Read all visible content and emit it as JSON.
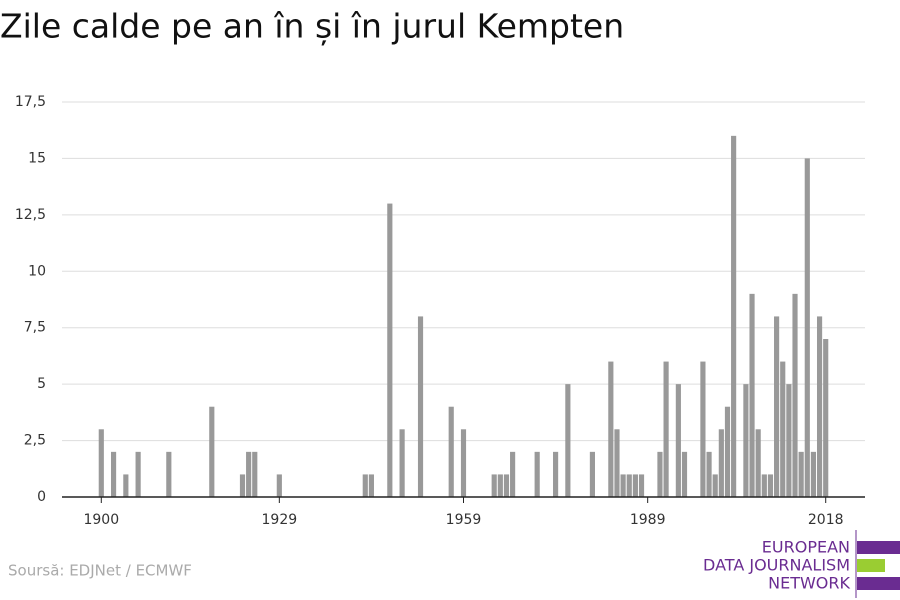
{
  "chart_data": {
    "type": "bar",
    "title": "Zile calde pe an în și în jurul Kempten",
    "x": [
      1900,
      1902,
      1904,
      1906,
      1911,
      1918,
      1923,
      1924,
      1925,
      1929,
      1943,
      1944,
      1947,
      1949,
      1952,
      1957,
      1959,
      1964,
      1965,
      1966,
      1967,
      1971,
      1974,
      1976,
      1980,
      1983,
      1984,
      1985,
      1986,
      1987,
      1988,
      1991,
      1992,
      1994,
      1995,
      1998,
      1999,
      2000,
      2001,
      2002,
      2003,
      2005,
      2006,
      2007,
      2008,
      2009,
      2010,
      2011,
      2012,
      2013,
      2014,
      2015,
      2016,
      2017,
      2018
    ],
    "values": [
      3,
      2,
      1,
      2,
      2,
      4,
      1,
      2,
      2,
      1,
      1,
      1,
      13,
      3,
      8,
      4,
      3,
      1,
      1,
      1,
      2,
      2,
      2,
      5,
      2,
      6,
      3,
      1,
      1,
      1,
      1,
      2,
      6,
      5,
      2,
      6,
      2,
      1,
      3,
      4,
      16,
      5,
      9,
      3,
      1,
      1,
      8,
      6,
      5,
      9,
      2,
      15,
      2,
      8,
      7
    ],
    "color": "#999999",
    "xlim": [
      1893.6,
      2024.4
    ],
    "xticks": [
      1900,
      1929,
      1959,
      1989,
      2018
    ],
    "ylim": [
      0,
      17.5
    ],
    "yticks": [
      0,
      {
        "value": 2.5,
        "label": "2,5"
      },
      5,
      {
        "value": 7.5,
        "label": "7,5"
      },
      10,
      {
        "value": 12.5,
        "label": "12,5"
      },
      15,
      {
        "value": 17.5,
        "label": "17,5"
      }
    ],
    "grid": true,
    "source": "Soursă: EDJNet / ECMWF"
  },
  "logo": {
    "lines": [
      "EUROPEAN",
      "DATA JOURNALISM",
      "NETWORK"
    ]
  }
}
